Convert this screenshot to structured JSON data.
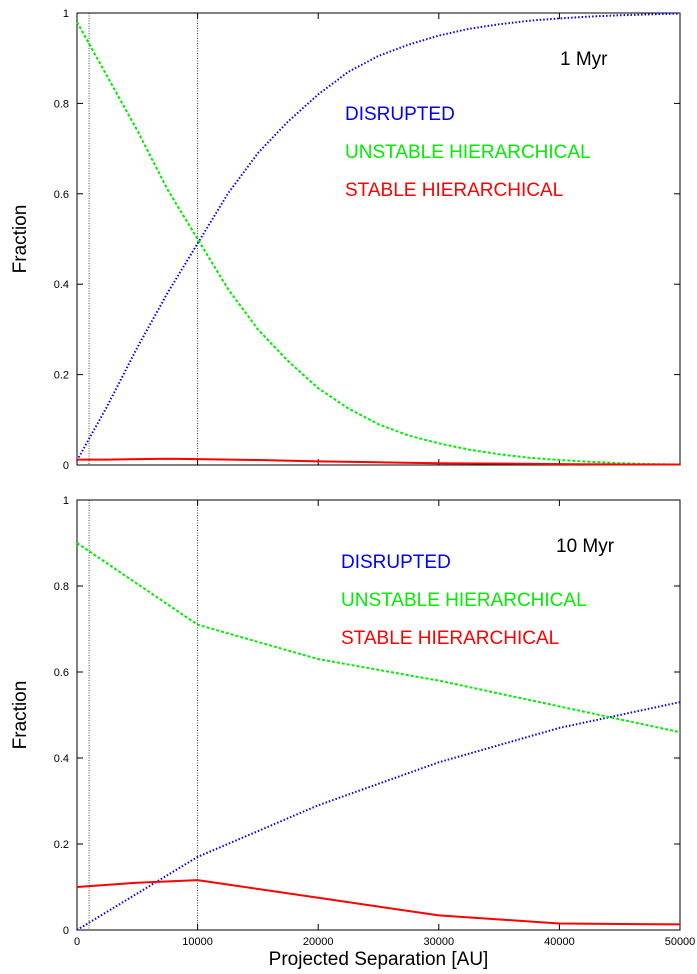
{
  "chart_data": [
    {
      "type": "line",
      "annotation": "1 Myr",
      "ylabel": "Fraction",
      "xlabel": "",
      "xlim": [
        0,
        50000
      ],
      "ylim": [
        0,
        1
      ],
      "x_ticks": [],
      "y_ticks": [
        "0",
        "0.2",
        "0.4",
        "0.6",
        "0.8",
        "1"
      ],
      "vlines": [
        1000,
        10000
      ],
      "legend": [
        "DISRUPTED",
        "UNSTABLE HIERARCHICAL",
        "STABLE HIERARCHICAL"
      ],
      "series": [
        {
          "name": "DISRUPTED",
          "color": "#0000ff",
          "style": "dotted",
          "x": [
            0,
            2500,
            5000,
            7500,
            10000,
            12500,
            15000,
            17500,
            20000,
            22500,
            25000,
            27500,
            30000,
            32500,
            35000,
            37500,
            40000,
            42500,
            45000,
            47500,
            50000
          ],
          "y": [
            0.01,
            0.13,
            0.26,
            0.38,
            0.49,
            0.6,
            0.69,
            0.76,
            0.82,
            0.87,
            0.905,
            0.93,
            0.95,
            0.965,
            0.975,
            0.983,
            0.988,
            0.992,
            0.995,
            0.997,
            0.999
          ]
        },
        {
          "name": "UNSTABLE HIERARCHICAL",
          "color": "#00ee00",
          "style": "dashed",
          "x": [
            0,
            2500,
            5000,
            7500,
            10000,
            12500,
            15000,
            17500,
            20000,
            22500,
            25000,
            27500,
            30000,
            32500,
            35000,
            37500,
            40000,
            42500,
            45000,
            47500,
            50000
          ],
          "y": [
            0.98,
            0.86,
            0.74,
            0.61,
            0.5,
            0.39,
            0.3,
            0.23,
            0.17,
            0.125,
            0.09,
            0.065,
            0.048,
            0.034,
            0.024,
            0.016,
            0.011,
            0.007,
            0.004,
            0.002,
            0.001
          ]
        },
        {
          "name": "STABLE HIERARCHICAL",
          "color": "#ff0000",
          "style": "solid",
          "x": [
            0,
            2500,
            5000,
            7500,
            10000,
            15000,
            20000,
            25000,
            30000,
            35000,
            40000,
            45000,
            50000
          ],
          "y": [
            0.012,
            0.012,
            0.013,
            0.014,
            0.013,
            0.011,
            0.008,
            0.006,
            0.004,
            0.003,
            0.002,
            0.001,
            0.001
          ]
        }
      ]
    },
    {
      "type": "line",
      "annotation": "10 Myr",
      "ylabel": "Fraction",
      "xlabel": "Projected Separation [AU]",
      "xlim": [
        0,
        50000
      ],
      "ylim": [
        0,
        1
      ],
      "x_ticks": [
        "0",
        "10000",
        "20000",
        "30000",
        "40000",
        "50000"
      ],
      "y_ticks": [
        "0",
        "0.2",
        "0.4",
        "0.6",
        "0.8",
        "1"
      ],
      "vlines": [
        1000,
        10000
      ],
      "legend": [
        "DISRUPTED",
        "UNSTABLE HIERARCHICAL",
        "STABLE HIERARCHICAL"
      ],
      "series": [
        {
          "name": "DISRUPTED",
          "color": "#0000ff",
          "style": "dotted",
          "x": [
            0,
            10000,
            20000,
            30000,
            40000,
            50000
          ],
          "y": [
            0.0,
            0.17,
            0.29,
            0.39,
            0.47,
            0.53
          ]
        },
        {
          "name": "UNSTABLE HIERARCHICAL",
          "color": "#00ee00",
          "style": "dashed",
          "x": [
            0,
            10000,
            20000,
            30000,
            40000,
            50000
          ],
          "y": [
            0.9,
            0.71,
            0.63,
            0.58,
            0.52,
            0.46
          ]
        },
        {
          "name": "STABLE HIERARCHICAL",
          "color": "#ff0000",
          "style": "solid",
          "x": [
            0,
            5000,
            10000,
            20000,
            30000,
            40000,
            50000
          ],
          "y": [
            0.1,
            0.11,
            0.116,
            0.075,
            0.034,
            0.015,
            0.013
          ]
        }
      ]
    }
  ]
}
